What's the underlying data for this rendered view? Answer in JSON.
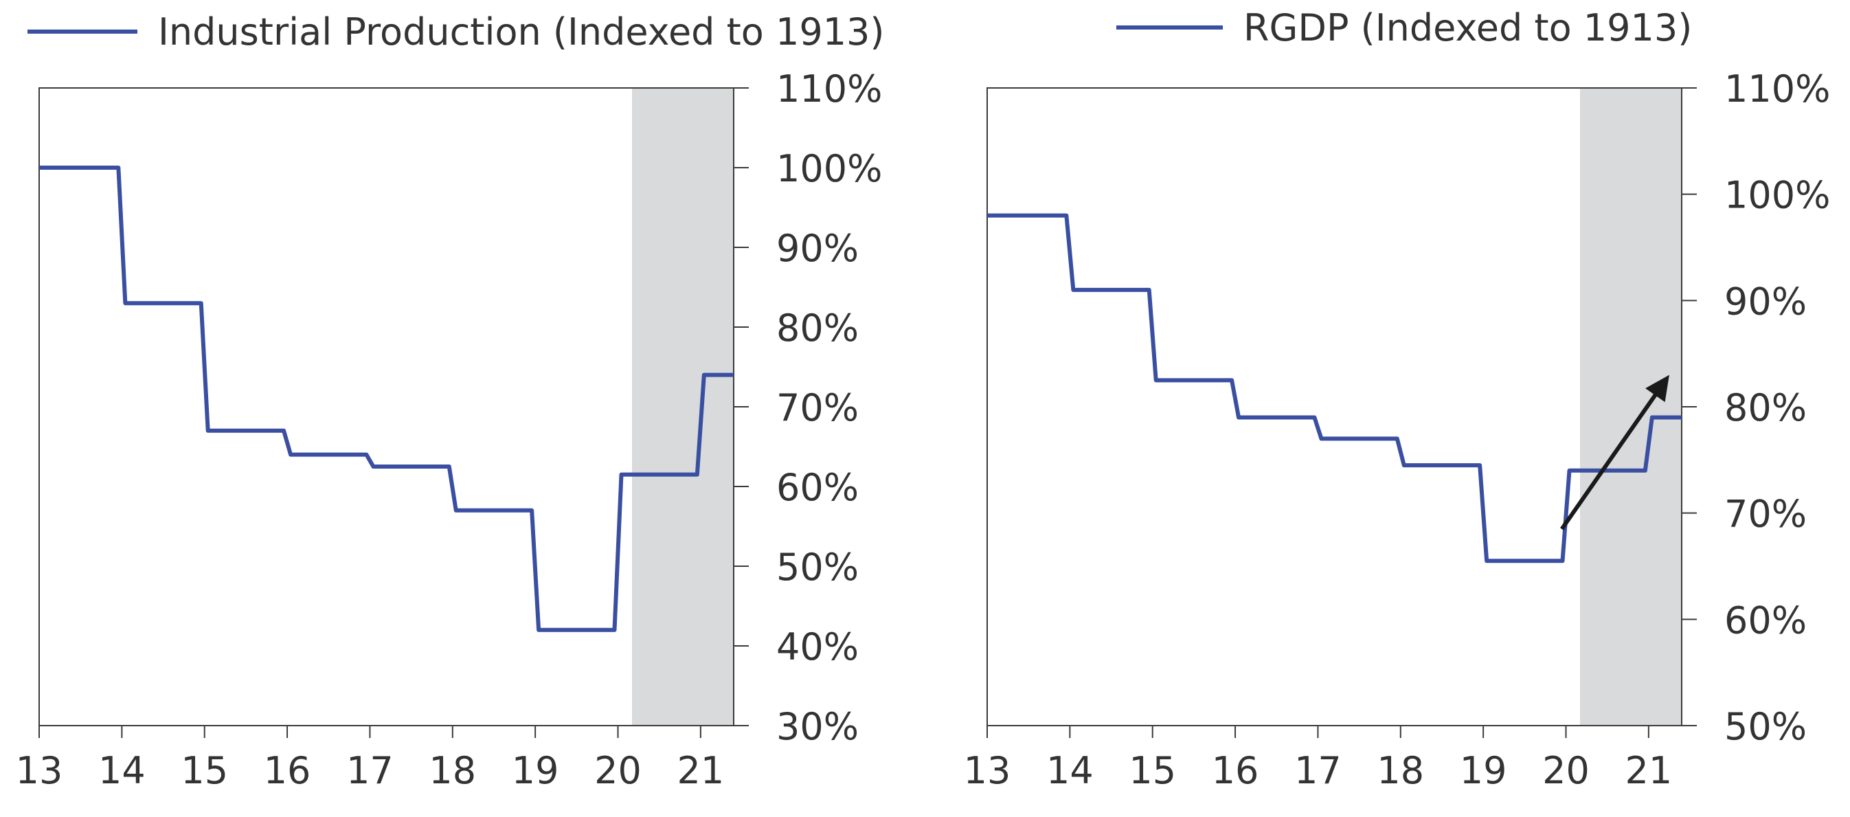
{
  "chart_data": [
    {
      "type": "line",
      "step": true,
      "title": "",
      "xlabel": "",
      "ylabel": "",
      "x_ticks": [
        "13",
        "14",
        "15",
        "16",
        "17",
        "18",
        "19",
        "20",
        "21"
      ],
      "xlim": [
        13,
        21.4
      ],
      "y_ticks": [
        "110%",
        "100%",
        "90%",
        "80%",
        "70%",
        "60%",
        "50%",
        "40%",
        "30%"
      ],
      "ylim": [
        30,
        110
      ],
      "y_axis_side": "right",
      "legend_position": "top",
      "shaded_region": {
        "x_start": 20.17,
        "x_end": 21.4,
        "color": "#d9dadb"
      },
      "series": [
        {
          "name": "Industrial Production (Indexed to 1913)",
          "color": "#3a4fa1",
          "x": [
            13,
            14,
            15,
            16,
            17,
            18,
            19,
            20,
            21,
            21.4
          ],
          "values": [
            100,
            83,
            67,
            64,
            62.5,
            57,
            42,
            61.5,
            74,
            74
          ]
        }
      ]
    },
    {
      "type": "line",
      "step": true,
      "title": "",
      "xlabel": "",
      "ylabel": "",
      "x_ticks": [
        "13",
        "14",
        "15",
        "16",
        "17",
        "18",
        "19",
        "20",
        "21"
      ],
      "xlim": [
        13,
        21.4
      ],
      "y_ticks": [
        "110%",
        "100%",
        "90%",
        "80%",
        "70%",
        "60%",
        "50%"
      ],
      "ylim": [
        50,
        110
      ],
      "y_axis_side": "right",
      "legend_position": "top",
      "shaded_region": {
        "x_start": 20.17,
        "x_end": 21.4,
        "color": "#d9dadb"
      },
      "annotation": {
        "type": "arrow",
        "from": [
          19.95,
          68.5
        ],
        "to": [
          21.25,
          83
        ]
      },
      "series": [
        {
          "name": "RGDP (Indexed to 1913)",
          "color": "#3a4fa1",
          "x": [
            13,
            14,
            15,
            16,
            17,
            18,
            19,
            20,
            21,
            21.4
          ],
          "values": [
            98,
            91,
            82.5,
            79,
            77,
            74.5,
            65.5,
            74,
            79,
            79
          ]
        }
      ]
    }
  ]
}
